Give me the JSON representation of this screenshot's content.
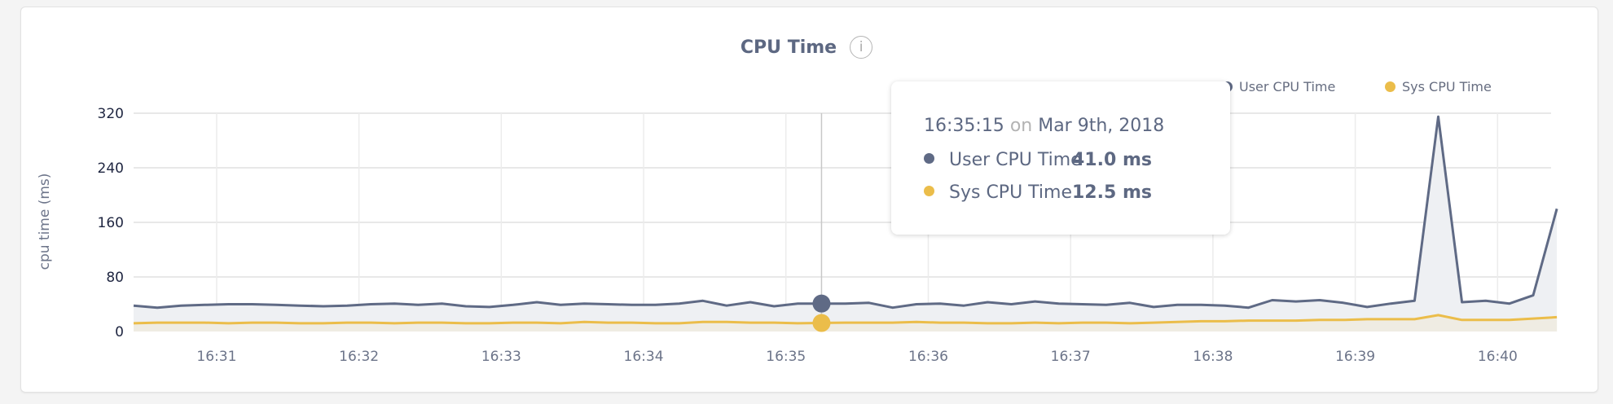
{
  "title": "CPU Time",
  "info_icon": "info-icon",
  "legend": [
    {
      "label": "User CPU Time",
      "color": "#5f6a85"
    },
    {
      "label": "Sys CPU Time",
      "color": "#ebbd4a"
    }
  ],
  "tooltip": {
    "time": "16:35:15",
    "on": "on",
    "date": "Mar 9th, 2018",
    "rows": [
      {
        "label": "User CPU Time",
        "value": "41.0 ms",
        "color": "#5f6a85"
      },
      {
        "label": "Sys CPU Time",
        "value": "12.5 ms",
        "color": "#ebbd4a"
      }
    ]
  },
  "chart_data": {
    "type": "area",
    "title": "CPU Time",
    "xlabel": "",
    "ylabel": "cpu time (ms)",
    "ylim": [
      0,
      320
    ],
    "yticks": [
      0,
      80,
      160,
      240,
      320
    ],
    "xlim": [
      "16:30:25",
      "16:40:15"
    ],
    "xticks": [
      "16:31",
      "16:32",
      "16:33",
      "16:34",
      "16:35",
      "16:36",
      "16:37",
      "16:38",
      "16:39",
      "16:40"
    ],
    "grid": true,
    "legend_position": "top-right",
    "x_start": "16:30:25",
    "x_interval_seconds": 10,
    "highlight_x": "16:35:15",
    "series": [
      {
        "name": "User CPU Time",
        "color": "#5f6a85",
        "values": [
          38,
          35,
          38,
          39,
          40,
          40,
          39,
          38,
          37,
          38,
          40,
          41,
          39,
          41,
          37,
          36,
          39,
          43,
          39,
          41,
          40,
          39,
          39,
          41,
          45,
          38,
          43,
          37,
          41,
          41,
          41,
          42,
          35,
          40,
          41,
          38,
          43,
          40,
          44,
          41,
          40,
          39,
          42,
          36,
          39,
          39,
          38,
          35,
          46,
          44,
          46,
          42,
          36,
          41,
          45,
          315,
          43,
          45,
          41,
          53,
          180
        ]
      },
      {
        "name": "Sys CPU Time",
        "color": "#ebbd4a",
        "values": [
          12,
          13,
          13,
          13,
          12,
          13,
          13,
          12,
          12,
          13,
          13,
          12,
          13,
          13,
          12,
          12,
          13,
          13,
          12,
          14,
          13,
          13,
          12,
          12,
          14,
          14,
          13,
          13,
          12,
          12.5,
          13,
          13,
          13,
          14,
          13,
          13,
          12,
          12,
          13,
          12,
          13,
          13,
          12,
          13,
          14,
          15,
          15,
          16,
          16,
          16,
          17,
          17,
          18,
          18,
          18,
          24,
          17,
          17,
          17,
          19,
          21
        ]
      }
    ]
  }
}
